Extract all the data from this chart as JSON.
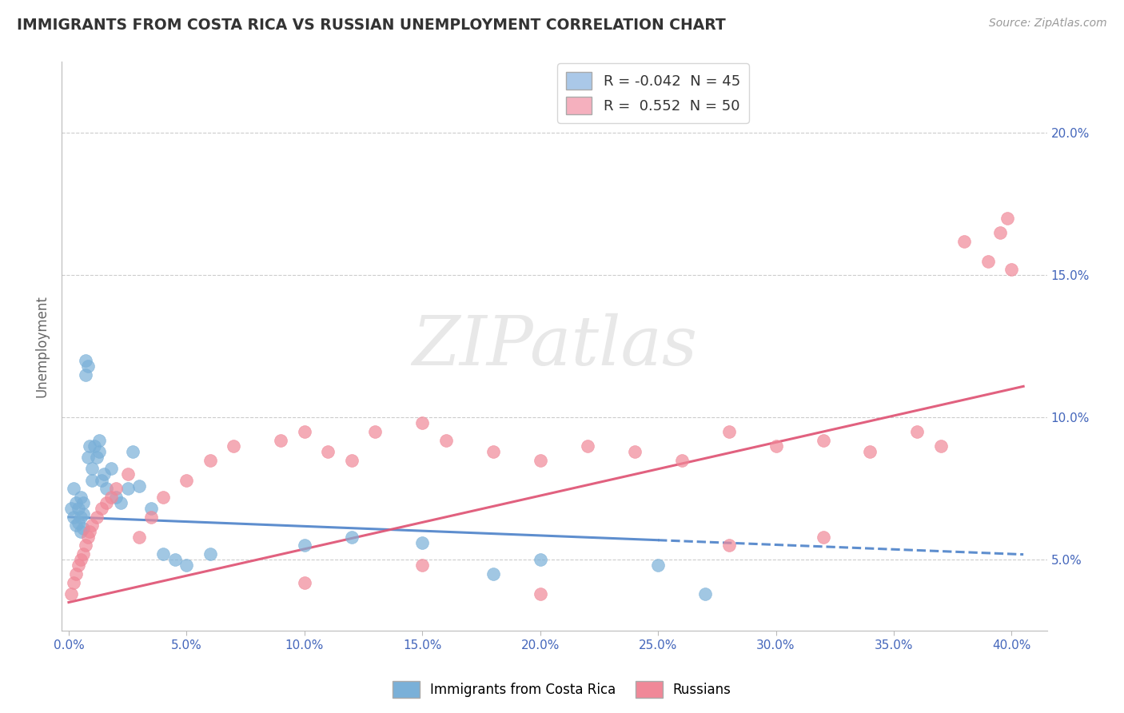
{
  "title": "IMMIGRANTS FROM COSTA RICA VS RUSSIAN UNEMPLOYMENT CORRELATION CHART",
  "source": "Source: ZipAtlas.com",
  "xlabel_ticks": [
    "0.0%",
    "5.0%",
    "10.0%",
    "15.0%",
    "20.0%",
    "25.0%",
    "30.0%",
    "35.0%",
    "40.0%"
  ],
  "xlabel_vals": [
    0.0,
    0.05,
    0.1,
    0.15,
    0.2,
    0.25,
    0.3,
    0.35,
    0.4
  ],
  "ylabel": "Unemployment",
  "ylabel_ticks": [
    "5.0%",
    "10.0%",
    "15.0%",
    "20.0%"
  ],
  "ylabel_vals": [
    0.05,
    0.1,
    0.15,
    0.2
  ],
  "ylim": [
    0.025,
    0.225
  ],
  "xlim": [
    -0.003,
    0.415
  ],
  "legend_entries": [
    {
      "label": "R = -0.042  N = 45",
      "color": "#aac8e8"
    },
    {
      "label": "R =  0.552  N = 50",
      "color": "#f5b0be"
    }
  ],
  "series1_color": "#7ab0d8",
  "series2_color": "#f08898",
  "trendline1_color": "#5588cc",
  "trendline2_color": "#e05878",
  "watermark_text": "ZIPatlas",
  "grid_color": "#cccccc",
  "title_color": "#333333",
  "axis_tick_color": "#4466bb",
  "ylabel_text_color": "#666666",
  "background_color": "#ffffff",
  "costa_rica_x": [
    0.001,
    0.002,
    0.002,
    0.003,
    0.003,
    0.004,
    0.004,
    0.005,
    0.005,
    0.005,
    0.006,
    0.006,
    0.006,
    0.007,
    0.007,
    0.008,
    0.008,
    0.009,
    0.01,
    0.01,
    0.011,
    0.012,
    0.013,
    0.013,
    0.014,
    0.015,
    0.016,
    0.018,
    0.02,
    0.022,
    0.025,
    0.027,
    0.03,
    0.035,
    0.04,
    0.045,
    0.05,
    0.06,
    0.1,
    0.12,
    0.15,
    0.18,
    0.2,
    0.25,
    0.27
  ],
  "costa_rica_y": [
    0.068,
    0.075,
    0.065,
    0.062,
    0.07,
    0.063,
    0.068,
    0.06,
    0.065,
    0.072,
    0.061,
    0.066,
    0.07,
    0.115,
    0.12,
    0.118,
    0.086,
    0.09,
    0.078,
    0.082,
    0.09,
    0.086,
    0.092,
    0.088,
    0.078,
    0.08,
    0.075,
    0.082,
    0.072,
    0.07,
    0.075,
    0.088,
    0.076,
    0.068,
    0.052,
    0.05,
    0.048,
    0.052,
    0.055,
    0.058,
    0.056,
    0.045,
    0.05,
    0.048,
    0.038
  ],
  "russians_x": [
    0.001,
    0.002,
    0.003,
    0.004,
    0.005,
    0.006,
    0.007,
    0.008,
    0.009,
    0.01,
    0.012,
    0.014,
    0.016,
    0.018,
    0.02,
    0.025,
    0.03,
    0.035,
    0.04,
    0.05,
    0.06,
    0.07,
    0.09,
    0.1,
    0.11,
    0.12,
    0.13,
    0.15,
    0.16,
    0.18,
    0.2,
    0.22,
    0.24,
    0.26,
    0.28,
    0.3,
    0.32,
    0.34,
    0.36,
    0.37,
    0.38,
    0.39,
    0.395,
    0.398,
    0.4,
    0.28,
    0.15,
    0.1,
    0.2,
    0.32
  ],
  "russians_y": [
    0.038,
    0.042,
    0.045,
    0.048,
    0.05,
    0.052,
    0.055,
    0.058,
    0.06,
    0.062,
    0.065,
    0.068,
    0.07,
    0.072,
    0.075,
    0.08,
    0.058,
    0.065,
    0.072,
    0.078,
    0.085,
    0.09,
    0.092,
    0.095,
    0.088,
    0.085,
    0.095,
    0.098,
    0.092,
    0.088,
    0.085,
    0.09,
    0.088,
    0.085,
    0.095,
    0.09,
    0.092,
    0.088,
    0.095,
    0.09,
    0.162,
    0.155,
    0.165,
    0.17,
    0.152,
    0.055,
    0.048,
    0.042,
    0.038,
    0.058
  ]
}
